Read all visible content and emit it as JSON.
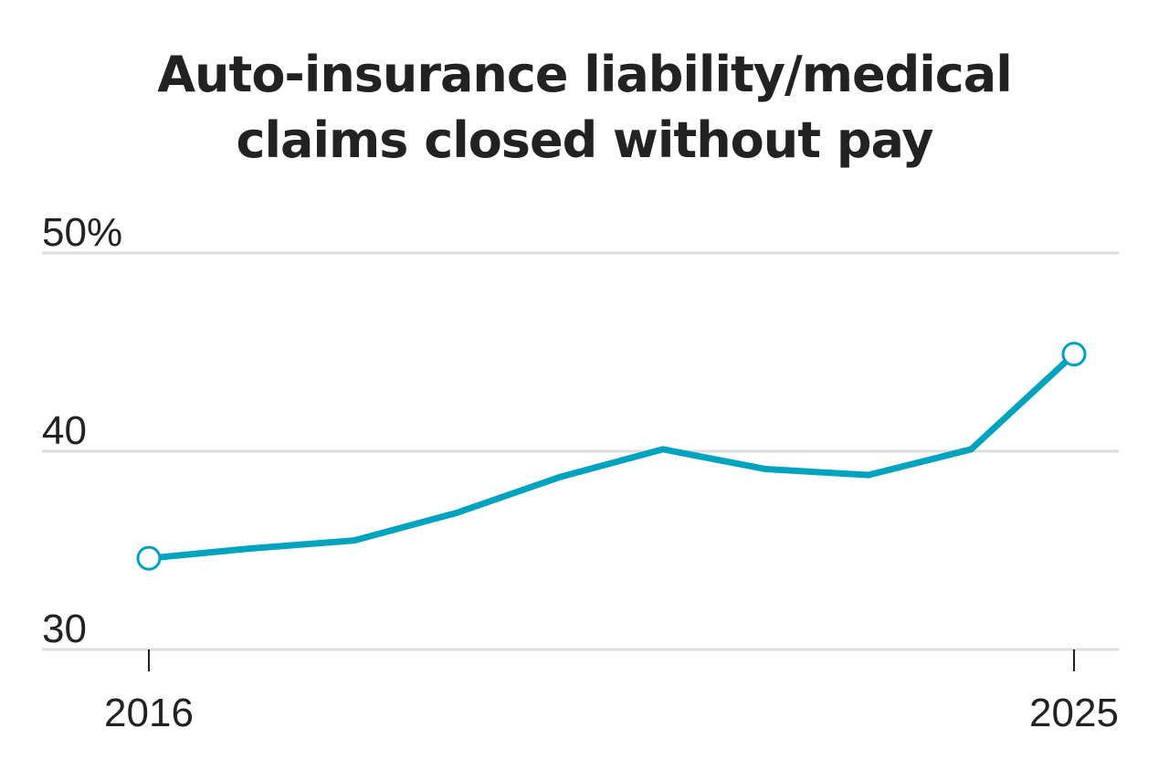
{
  "chart_data": {
    "type": "line",
    "title": "Auto-insurance liability/medical claims closed without pay",
    "x": [
      2016,
      2017,
      2018,
      2019,
      2020,
      2021,
      2022,
      2023,
      2024,
      2025
    ],
    "series": [
      {
        "color": "#00a3bf",
        "values": [
          34.6,
          35.1,
          35.5,
          36.9,
          38.7,
          40.1,
          39.1,
          38.8,
          40.1,
          44.9
        ]
      }
    ],
    "xlim": [
      2016,
      2025
    ],
    "xticks": [
      2016,
      2025
    ],
    "ylim": [
      30,
      50
    ],
    "yticks": [
      30,
      40,
      {
        "value": 50,
        "label": "50%"
      }
    ],
    "grid": true
  }
}
